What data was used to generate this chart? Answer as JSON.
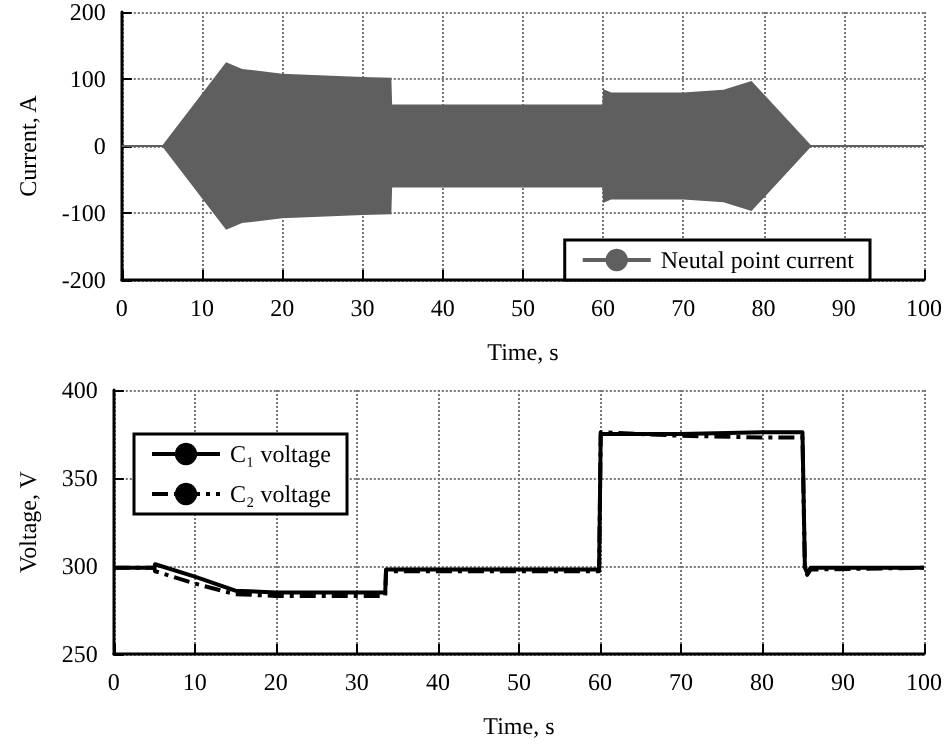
{
  "chart_data": [
    {
      "type": "line",
      "xlabel": "Time, s",
      "ylabel": "Current, A",
      "x": [
        0,
        5,
        13,
        15,
        20,
        30,
        33.6,
        33.7,
        40,
        50,
        59.9,
        60,
        61,
        65,
        70,
        75,
        78.5,
        86,
        100
      ],
      "series": [
        {
          "name": "Neutal point current",
          "color": "#5f5f5f",
          "values": [
            0,
            0,
            0,
            0,
            0,
            0,
            0,
            0,
            0,
            0,
            0,
            0,
            0,
            0,
            0,
            0,
            0,
            0,
            0
          ],
          "lower": [
            0,
            0,
            -125,
            -115,
            -108,
            -103,
            -102,
            -62,
            -62,
            -62,
            -62,
            -85,
            -80,
            -80,
            -80,
            -84,
            -97,
            0,
            0
          ],
          "upper": [
            0,
            0,
            125,
            115,
            108,
            103,
            102,
            62,
            62,
            62,
            62,
            85,
            80,
            80,
            80,
            84,
            97,
            0,
            0
          ]
        }
      ],
      "xlim": [
        0,
        100
      ],
      "xticks": [
        0,
        10,
        20,
        30,
        40,
        50,
        60,
        70,
        80,
        90,
        100
      ],
      "ylim": [
        -200,
        200
      ],
      "yticks": [
        -200,
        -100,
        0,
        100,
        200
      ],
      "grid": true,
      "legend": "bottom right"
    },
    {
      "type": "line",
      "xlabel": "Time, s",
      "ylabel": "Voltage, V",
      "x": [
        0,
        5,
        5.1,
        10,
        15,
        20,
        30,
        33.5,
        33.6,
        59.9,
        60,
        60.1,
        70,
        80,
        85,
        85.3,
        85.6,
        86,
        100
      ],
      "series": [
        {
          "name": "C₁ voltage",
          "color": "#000000",
          "line_style": "solid",
          "values": [
            299,
            299,
            301,
            294,
            286,
            285,
            285,
            285,
            298,
            298,
            298,
            375,
            375,
            376,
            376,
            299,
            296,
            299,
            299
          ]
        },
        {
          "name": "C₂ voltage",
          "color": "#000000",
          "line_style": "dashed",
          "values": [
            299,
            299,
            297,
            290,
            284,
            283,
            283,
            283,
            297,
            297,
            297,
            376,
            374,
            373,
            373,
            298,
            295,
            298,
            299
          ]
        }
      ],
      "xlim": [
        0,
        100
      ],
      "xticks": [
        0,
        10,
        20,
        30,
        40,
        50,
        60,
        70,
        80,
        90,
        100
      ],
      "ylim": [
        250,
        400
      ],
      "yticks": [
        250,
        300,
        350,
        400
      ],
      "grid": true,
      "legend": "top left"
    }
  ]
}
